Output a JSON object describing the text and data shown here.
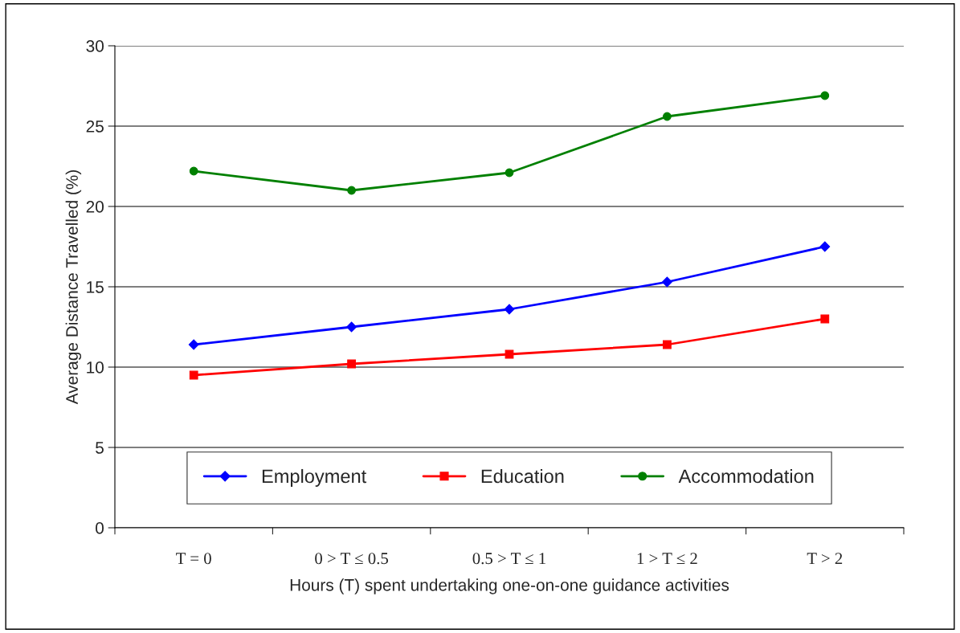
{
  "chart_data": {
    "type": "line",
    "xlabel": "Hours (T) spent undertaking one-on-one guidance activities",
    "ylabel": "Average Distance Travelled (%)",
    "categories": [
      "T = 0",
      "0 > T ≤ 0.5",
      "0.5 > T ≤ 1",
      "1 > T ≤ 2",
      "T > 2"
    ],
    "series": [
      {
        "name": "Employment",
        "color": "#0000ff",
        "marker": "diamond",
        "values": [
          11.4,
          12.5,
          13.6,
          15.3,
          17.5
        ]
      },
      {
        "name": "Education",
        "color": "#ff0000",
        "marker": "square",
        "values": [
          9.5,
          10.2,
          10.8,
          11.4,
          13.0
        ]
      },
      {
        "name": "Accommodation",
        "color": "#008000",
        "marker": "circle",
        "values": [
          22.2,
          21.0,
          22.1,
          25.6,
          26.9
        ]
      }
    ],
    "ylim": [
      0,
      30
    ],
    "yticks": [
      0,
      5,
      10,
      15,
      20,
      25,
      30
    ],
    "grid": "y",
    "legend": "bottom"
  }
}
